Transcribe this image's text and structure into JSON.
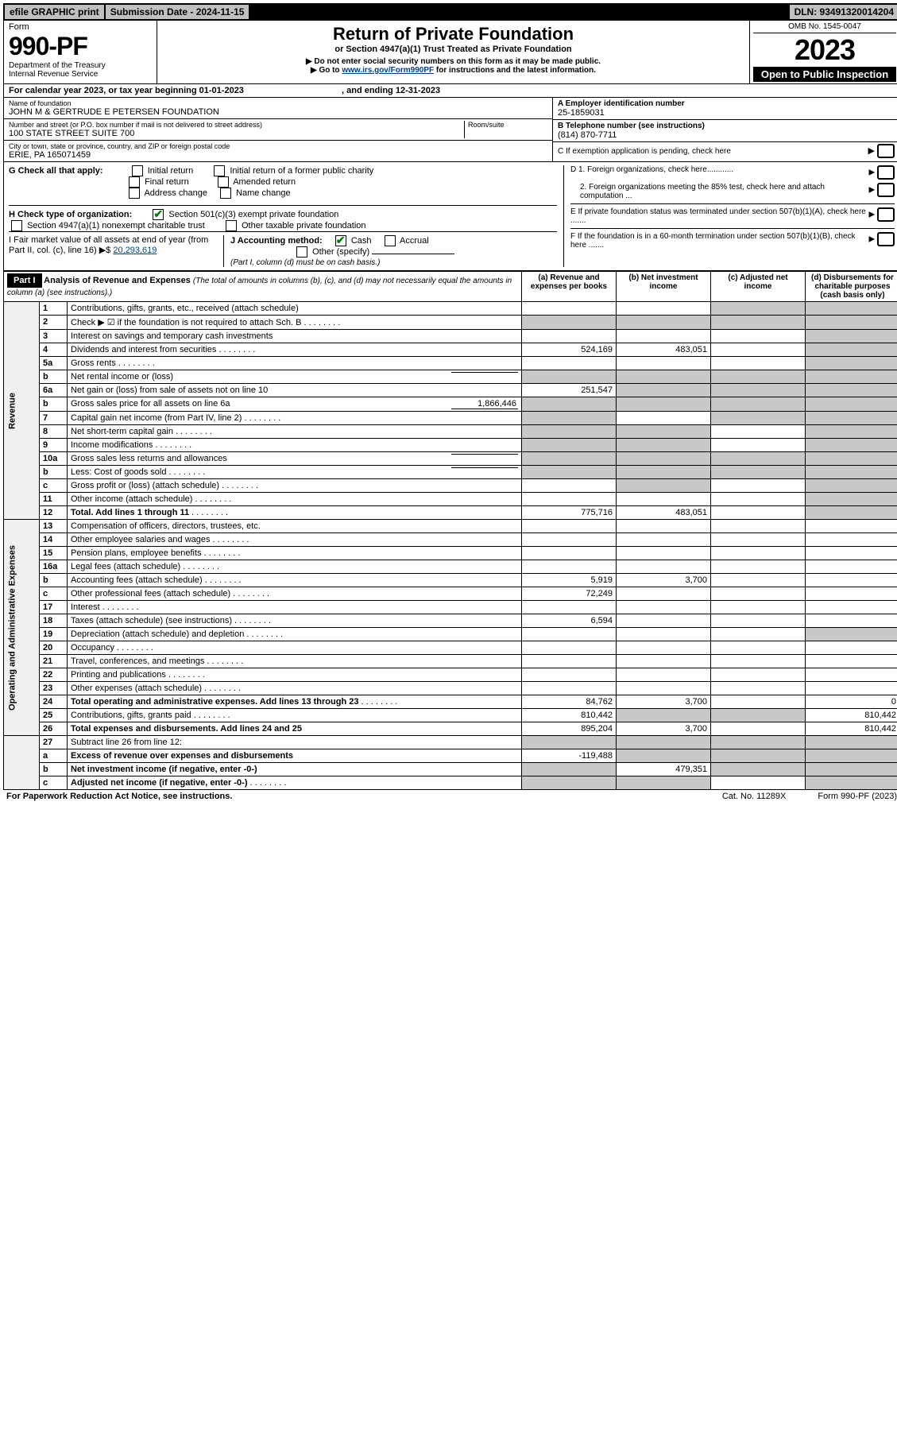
{
  "topbar": {
    "efile": "efile GRAPHIC print",
    "submission_label": "Submission Date - 2024-11-15",
    "dln": "DLN: 93491320014204"
  },
  "header": {
    "form_label": "Form",
    "form_no": "990-PF",
    "dept": "Department of the Treasury",
    "irs": "Internal Revenue Service",
    "title": "Return of Private Foundation",
    "subtitle": "or Section 4947(a)(1) Trust Treated as Private Foundation",
    "note1": "▶ Do not enter social security numbers on this form as it may be made public.",
    "note2_pre": "▶ Go to ",
    "note2_link": "www.irs.gov/Form990PF",
    "note2_post": " for instructions and the latest information.",
    "omb": "OMB No. 1545-0047",
    "year": "2023",
    "open": "Open to Public Inspection"
  },
  "calyear": {
    "text_pre": "For calendar year 2023, or tax year beginning ",
    "begin": "01-01-2023",
    "mid": " , and ending ",
    "end": "12-31-2023"
  },
  "id": {
    "name_label": "Name of foundation",
    "name": "JOHN M & GERTRUDE E PETERSEN FOUNDATION",
    "addr_label": "Number and street (or P.O. box number if mail is not delivered to street address)",
    "addr": "100 STATE STREET SUITE 700",
    "room_label": "Room/suite",
    "city_label": "City or town, state or province, country, and ZIP or foreign postal code",
    "city": "ERIE, PA  165071459",
    "ein_label": "A Employer identification number",
    "ein": "25-1859031",
    "tel_label": "B Telephone number (see instructions)",
    "tel": "(814) 870-7711",
    "c_label": "C If exemption application is pending, check here"
  },
  "g": {
    "label": "G Check all that apply:",
    "initial": "Initial return",
    "initial_pub": "Initial return of a former public charity",
    "final": "Final return",
    "amended": "Amended return",
    "addr_change": "Address change",
    "name_change": "Name change"
  },
  "h": {
    "label": "H Check type of organization:",
    "s501": "Section 501(c)(3) exempt private foundation",
    "s4947": "Section 4947(a)(1) nonexempt charitable trust",
    "other_tax": "Other taxable private foundation"
  },
  "i": {
    "label": "I Fair market value of all assets at end of year (from Part II, col. (c), line 16) ▶$ ",
    "value": "20,293,619"
  },
  "j": {
    "label": "J Accounting method:",
    "cash": "Cash",
    "accrual": "Accrual",
    "other": "Other (specify)",
    "note": "(Part I, column (d) must be on cash basis.)"
  },
  "d": {
    "d1": "D 1. Foreign organizations, check here............",
    "d2": "2. Foreign organizations meeting the 85% test, check here and attach computation ...",
    "e": "E  If private foundation status was terminated under section 507(b)(1)(A), check here .......",
    "f": "F  If the foundation is in a 60-month termination under section 507(b)(1)(B), check here ......."
  },
  "part1": {
    "label": "Part I",
    "title": "Analysis of Revenue and Expenses",
    "title_note": "(The total of amounts in columns (b), (c), and (d) may not necessarily equal the amounts in column (a) (see instructions).)",
    "col_a": "(a) Revenue and expenses per books",
    "col_b": "(b) Net investment income",
    "col_c": "(c) Adjusted net income",
    "col_d": "(d) Disbursements for charitable purposes (cash basis only)"
  },
  "revenue_label": "Revenue",
  "expenses_label": "Operating and Administrative Expenses",
  "rows": [
    {
      "n": "1",
      "d": "Contributions, gifts, grants, etc., received (attach schedule)",
      "a": "",
      "b": "",
      "c_shade": true,
      "d_shade": true
    },
    {
      "n": "2",
      "d": "Check ▶ ☑ if the foundation is not required to attach Sch. B",
      "a_shade": true,
      "b_shade": true,
      "c_shade": true,
      "d_shade": true,
      "dots": true
    },
    {
      "n": "3",
      "d": "Interest on savings and temporary cash investments",
      "a": "",
      "b": "",
      "c": "",
      "d_shade": true
    },
    {
      "n": "4",
      "d": "Dividends and interest from securities",
      "a": "524,169",
      "b": "483,051",
      "c": "",
      "d_shade": true,
      "dots": true
    },
    {
      "n": "5a",
      "d": "Gross rents",
      "a": "",
      "b": "",
      "c": "",
      "d_shade": true,
      "dots": true
    },
    {
      "n": "b",
      "d": "Net rental income or (loss)",
      "a_shade": true,
      "b_shade": true,
      "c_shade": true,
      "d_shade": true,
      "inline": ""
    },
    {
      "n": "6a",
      "d": "Net gain or (loss) from sale of assets not on line 10",
      "a": "251,547",
      "b_shade": true,
      "c_shade": true,
      "d_shade": true
    },
    {
      "n": "b",
      "d": "Gross sales price for all assets on line 6a",
      "a_shade": true,
      "b_shade": true,
      "c_shade": true,
      "d_shade": true,
      "inline": "1,866,446"
    },
    {
      "n": "7",
      "d": "Capital gain net income (from Part IV, line 2)",
      "a_shade": true,
      "b": "",
      "c_shade": true,
      "d_shade": true,
      "dots": true
    },
    {
      "n": "8",
      "d": "Net short-term capital gain",
      "a_shade": true,
      "b_shade": true,
      "c": "",
      "d_shade": true,
      "dots": true
    },
    {
      "n": "9",
      "d": "Income modifications",
      "a_shade": true,
      "b_shade": true,
      "c": "",
      "d_shade": true,
      "dots": true
    },
    {
      "n": "10a",
      "d": "Gross sales less returns and allowances",
      "a_shade": true,
      "b_shade": true,
      "c_shade": true,
      "d_shade": true,
      "inline": ""
    },
    {
      "n": "b",
      "d": "Less: Cost of goods sold",
      "a_shade": true,
      "b_shade": true,
      "c_shade": true,
      "d_shade": true,
      "inline": "",
      "dots": true
    },
    {
      "n": "c",
      "d": "Gross profit or (loss) (attach schedule)",
      "a": "",
      "b_shade": true,
      "c": "",
      "d_shade": true,
      "dots": true
    },
    {
      "n": "11",
      "d": "Other income (attach schedule)",
      "a": "",
      "b": "",
      "c": "",
      "d_shade": true,
      "dots": true
    },
    {
      "n": "12",
      "d": "Total. Add lines 1 through 11",
      "a": "775,716",
      "b": "483,051",
      "c": "",
      "d_shade": true,
      "bold": true,
      "dots": true
    }
  ],
  "exp_rows": [
    {
      "n": "13",
      "d": "Compensation of officers, directors, trustees, etc.",
      "a": "",
      "b": "",
      "c": "",
      "dv": ""
    },
    {
      "n": "14",
      "d": "Other employee salaries and wages",
      "a": "",
      "b": "",
      "c": "",
      "dv": "",
      "dots": true
    },
    {
      "n": "15",
      "d": "Pension plans, employee benefits",
      "a": "",
      "b": "",
      "c": "",
      "dv": "",
      "dots": true
    },
    {
      "n": "16a",
      "d": "Legal fees (attach schedule)",
      "a": "",
      "b": "",
      "c": "",
      "dv": "",
      "dots": true
    },
    {
      "n": "b",
      "d": "Accounting fees (attach schedule)",
      "a": "5,919",
      "b": "3,700",
      "c": "",
      "dv": "",
      "dots": true
    },
    {
      "n": "c",
      "d": "Other professional fees (attach schedule)",
      "a": "72,249",
      "b": "",
      "c": "",
      "dv": "",
      "dots": true
    },
    {
      "n": "17",
      "d": "Interest",
      "a": "",
      "b": "",
      "c": "",
      "dv": "",
      "dots": true
    },
    {
      "n": "18",
      "d": "Taxes (attach schedule) (see instructions)",
      "a": "6,594",
      "b": "",
      "c": "",
      "dv": "",
      "dots": true
    },
    {
      "n": "19",
      "d": "Depreciation (attach schedule) and depletion",
      "a": "",
      "b": "",
      "c": "",
      "d_shade": true,
      "dots": true
    },
    {
      "n": "20",
      "d": "Occupancy",
      "a": "",
      "b": "",
      "c": "",
      "dv": "",
      "dots": true
    },
    {
      "n": "21",
      "d": "Travel, conferences, and meetings",
      "a": "",
      "b": "",
      "c": "",
      "dv": "",
      "dots": true
    },
    {
      "n": "22",
      "d": "Printing and publications",
      "a": "",
      "b": "",
      "c": "",
      "dv": "",
      "dots": true
    },
    {
      "n": "23",
      "d": "Other expenses (attach schedule)",
      "a": "",
      "b": "",
      "c": "",
      "dv": "",
      "dots": true
    },
    {
      "n": "24",
      "d": "Total operating and administrative expenses. Add lines 13 through 23",
      "a": "84,762",
      "b": "3,700",
      "c": "",
      "dv": "0",
      "bold": true,
      "dots": true
    },
    {
      "n": "25",
      "d": "Contributions, gifts, grants paid",
      "a": "810,442",
      "b_shade": true,
      "c_shade": true,
      "dv": "810,442",
      "dots": true
    },
    {
      "n": "26",
      "d": "Total expenses and disbursements. Add lines 24 and 25",
      "a": "895,204",
      "b": "3,700",
      "c": "",
      "dv": "810,442",
      "bold": true
    }
  ],
  "bottom_rows": [
    {
      "n": "27",
      "d": "Subtract line 26 from line 12:",
      "a_shade": true,
      "b_shade": true,
      "c_shade": true,
      "d_shade": true
    },
    {
      "n": "a",
      "d": "Excess of revenue over expenses and disbursements",
      "a": "-119,488",
      "b_shade": true,
      "c_shade": true,
      "d_shade": true,
      "bold": true
    },
    {
      "n": "b",
      "d": "Net investment income (if negative, enter -0-)",
      "a_shade": true,
      "b": "479,351",
      "c_shade": true,
      "d_shade": true,
      "bold": true
    },
    {
      "n": "c",
      "d": "Adjusted net income (if negative, enter -0-)",
      "a_shade": true,
      "b_shade": true,
      "c": "",
      "d_shade": true,
      "bold": true,
      "dots": true
    }
  ],
  "footer": {
    "pra": "For Paperwork Reduction Act Notice, see instructions.",
    "cat": "Cat. No. 11289X",
    "form": "Form 990-PF (2023)"
  },
  "colors": {
    "link": "#004080",
    "check": "#008000",
    "shade": "#c8c8c8",
    "topbar_bg": "#c0c0c0"
  }
}
